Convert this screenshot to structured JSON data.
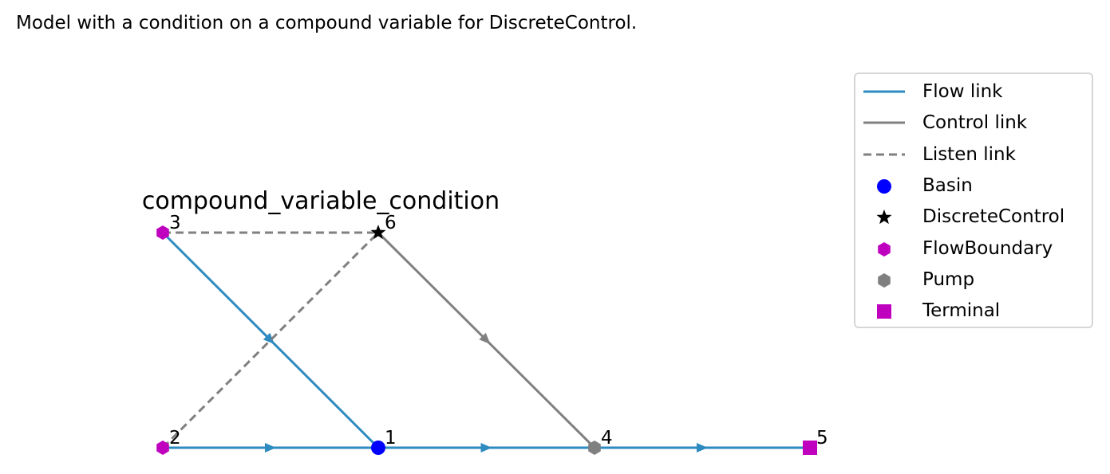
{
  "caption": "Model with a condition on a compound variable for DiscreteControl.",
  "diagram": {
    "title": "compound_variable_condition",
    "nodes": [
      {
        "id": "1",
        "type": "Basin"
      },
      {
        "id": "2",
        "type": "FlowBoundary"
      },
      {
        "id": "3",
        "type": "FlowBoundary"
      },
      {
        "id": "4",
        "type": "Pump"
      },
      {
        "id": "5",
        "type": "Terminal"
      },
      {
        "id": "6",
        "type": "DiscreteControl"
      }
    ],
    "links": [
      {
        "from": "2",
        "to": "1",
        "kind": "Flow link"
      },
      {
        "from": "3",
        "to": "1",
        "kind": "Flow link"
      },
      {
        "from": "1",
        "to": "4",
        "kind": "Flow link"
      },
      {
        "from": "4",
        "to": "5",
        "kind": "Flow link"
      },
      {
        "from": "6",
        "to": "4",
        "kind": "Control link"
      },
      {
        "from": "2",
        "to": "6",
        "kind": "Listen link"
      },
      {
        "from": "3",
        "to": "6",
        "kind": "Listen link"
      }
    ]
  },
  "legend": {
    "items": [
      {
        "label": "Flow link",
        "symbol": "line",
        "color": "#2e8bc0"
      },
      {
        "label": "Control link",
        "symbol": "line",
        "color": "#808080"
      },
      {
        "label": "Listen link",
        "symbol": "dashed",
        "color": "#808080"
      },
      {
        "label": "Basin",
        "symbol": "circle",
        "color": "#0000ff"
      },
      {
        "label": "DiscreteControl",
        "symbol": "star",
        "color": "#000000"
      },
      {
        "label": "FlowBoundary",
        "symbol": "hexagon",
        "color": "#bf00bf"
      },
      {
        "label": "Pump",
        "symbol": "hexagon",
        "color": "#808080"
      },
      {
        "label": "Terminal",
        "symbol": "square",
        "color": "#bf00bf"
      }
    ]
  }
}
